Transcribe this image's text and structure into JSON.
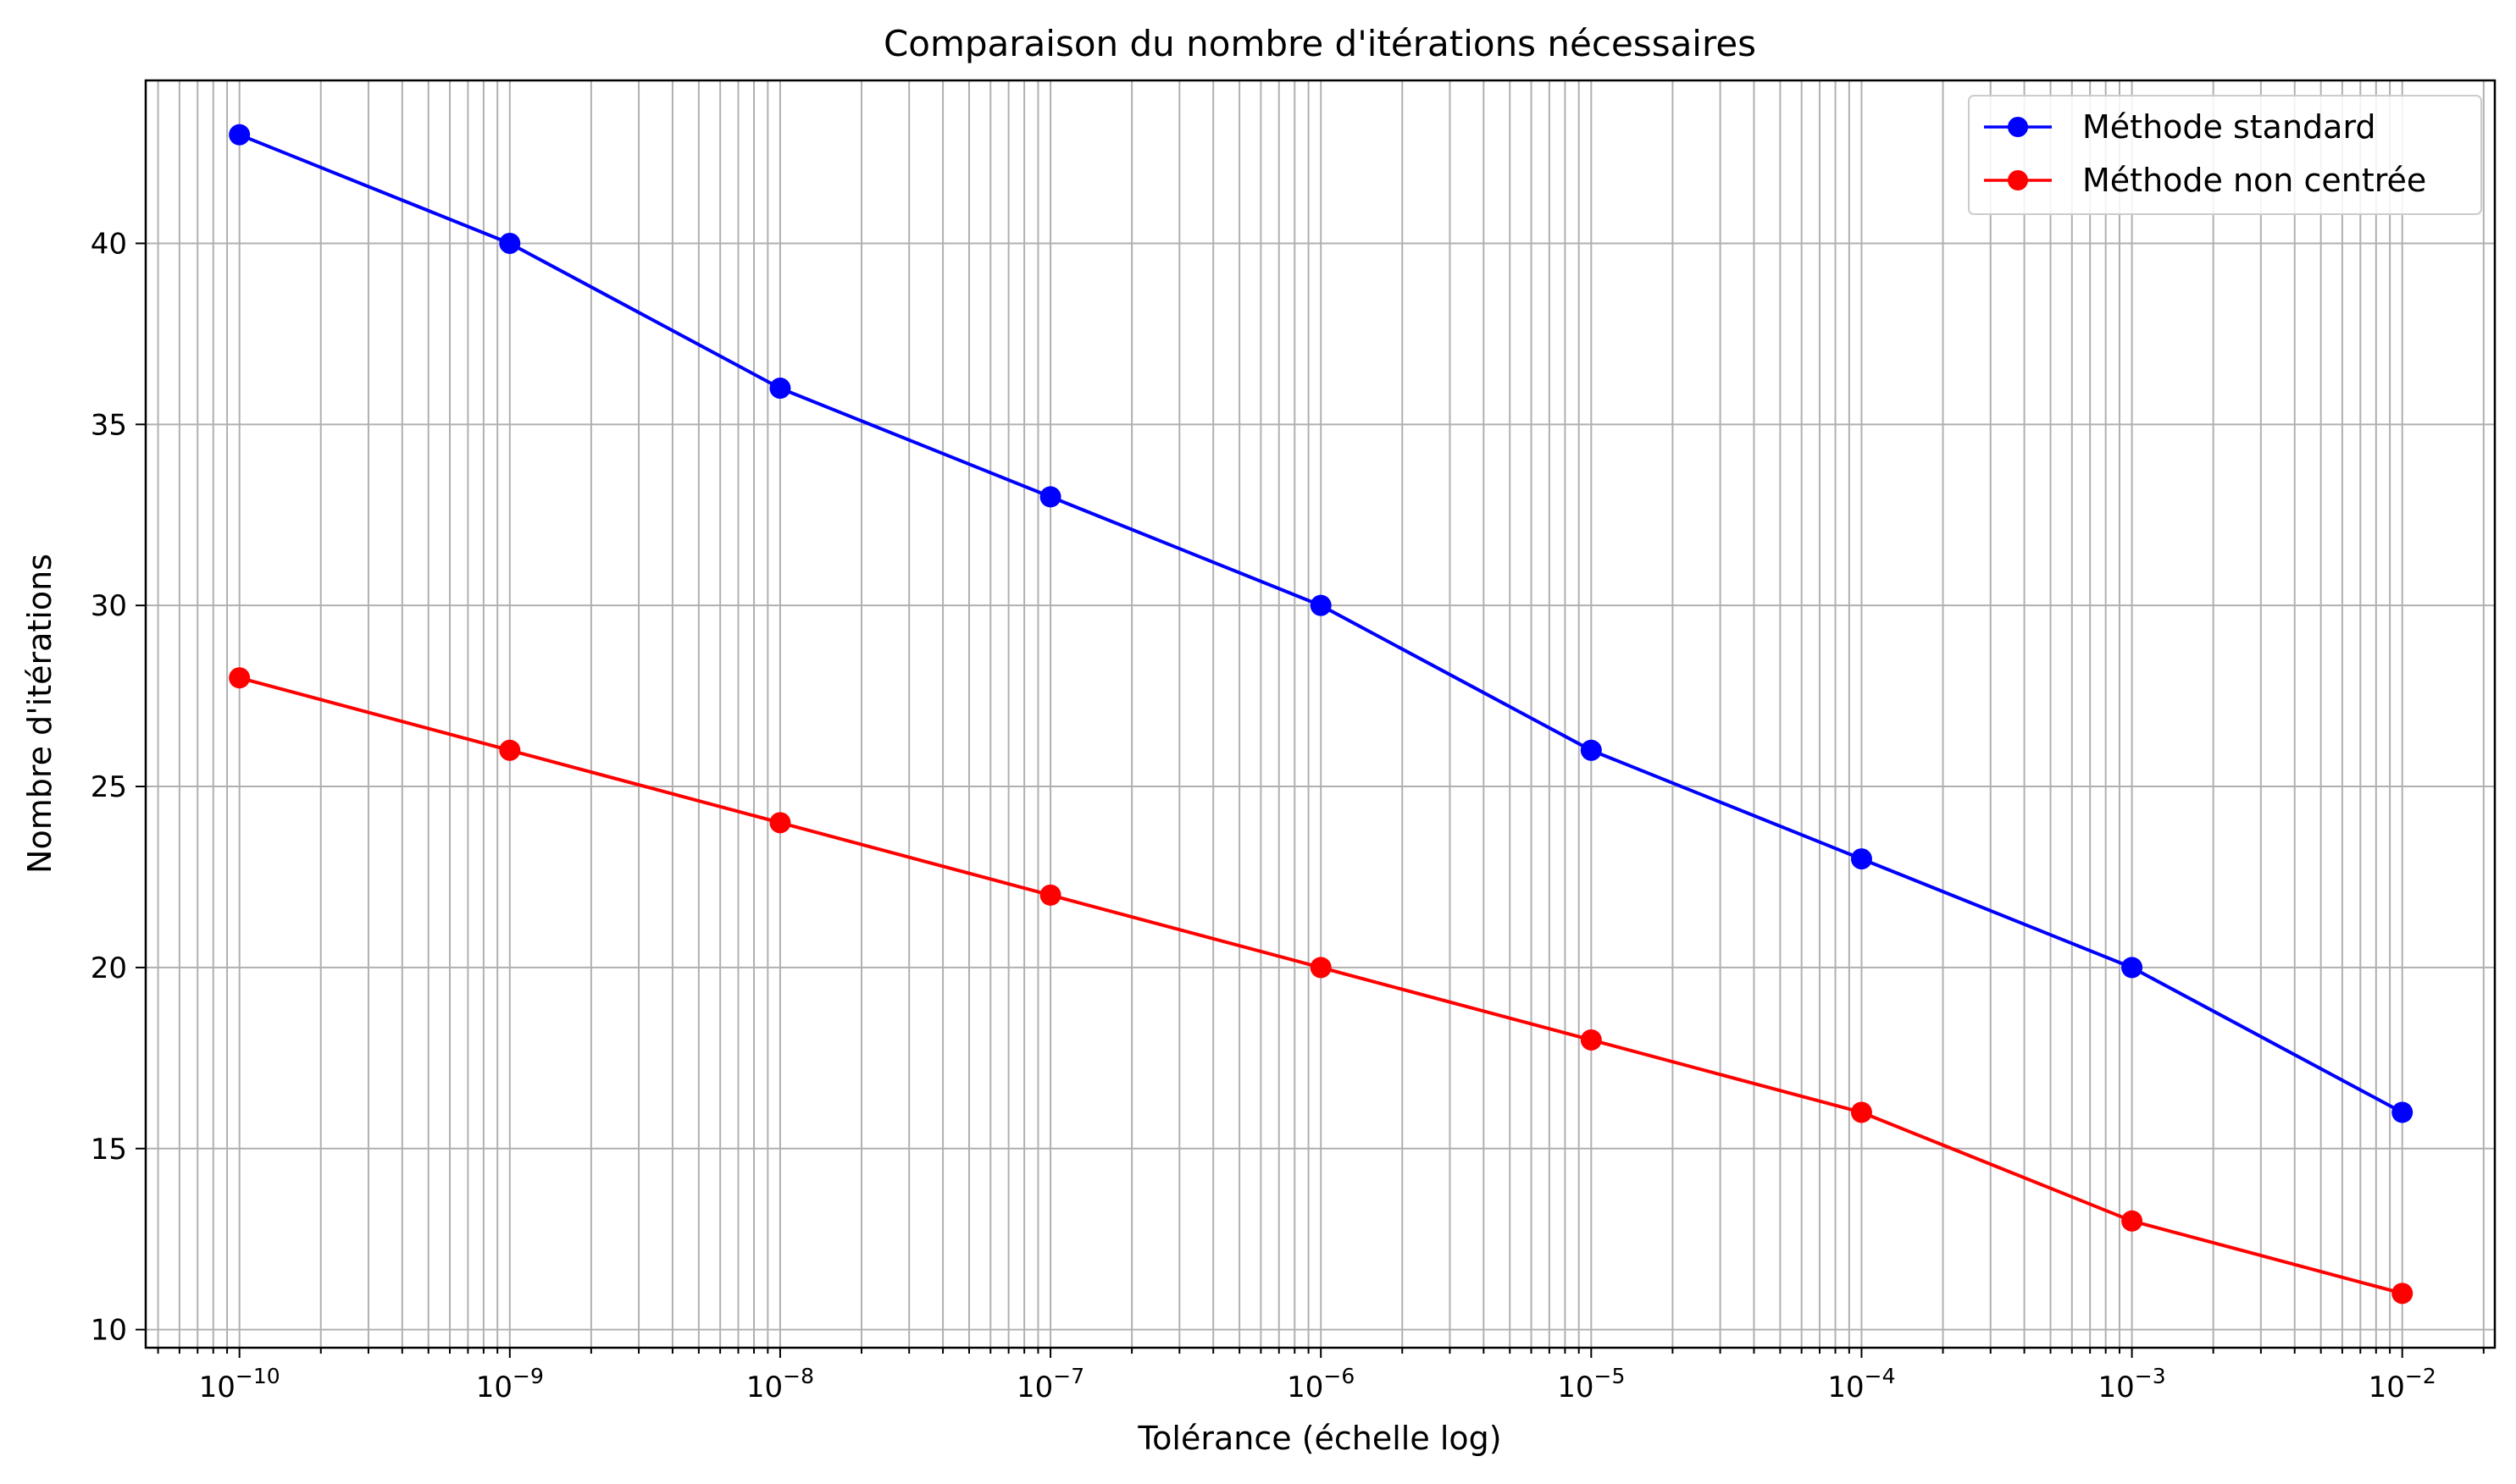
{
  "chart_data": {
    "type": "line",
    "title": "Comparaison du nombre d'itérations nécessaires",
    "xlabel": "Tolérance (échelle log)",
    "ylabel": "Nombre d'itérations",
    "x_scale": "log",
    "x": [
      1e-10,
      1e-09,
      1e-08,
      1e-07,
      1e-06,
      1e-05,
      0.0001,
      0.001,
      0.01
    ],
    "x_tick_labels": [
      {
        "base": "10",
        "exp": "−10"
      },
      {
        "base": "10",
        "exp": "−9"
      },
      {
        "base": "10",
        "exp": "−8"
      },
      {
        "base": "10",
        "exp": "−7"
      },
      {
        "base": "10",
        "exp": "−6"
      },
      {
        "base": "10",
        "exp": "−5"
      },
      {
        "base": "10",
        "exp": "−4"
      },
      {
        "base": "10",
        "exp": "−3"
      },
      {
        "base": "10",
        "exp": "−2"
      }
    ],
    "y_ticks": [
      10,
      15,
      20,
      25,
      30,
      35,
      40
    ],
    "xlim": [
      4.5e-11,
      0.022
    ],
    "ylim": [
      9.5,
      44.5
    ],
    "grid": "major and minor (x), major (y)",
    "legend_position": "top-right",
    "series": [
      {
        "name": "Méthode standard",
        "color": "#0000ff",
        "marker": "circle",
        "values": [
          43,
          40,
          36,
          33,
          30,
          26,
          23,
          20,
          16
        ]
      },
      {
        "name": "Méthode non centrée",
        "color": "#ff0000",
        "marker": "circle",
        "values": [
          28,
          26,
          24,
          22,
          20,
          18,
          16,
          13,
          11
        ]
      }
    ]
  }
}
